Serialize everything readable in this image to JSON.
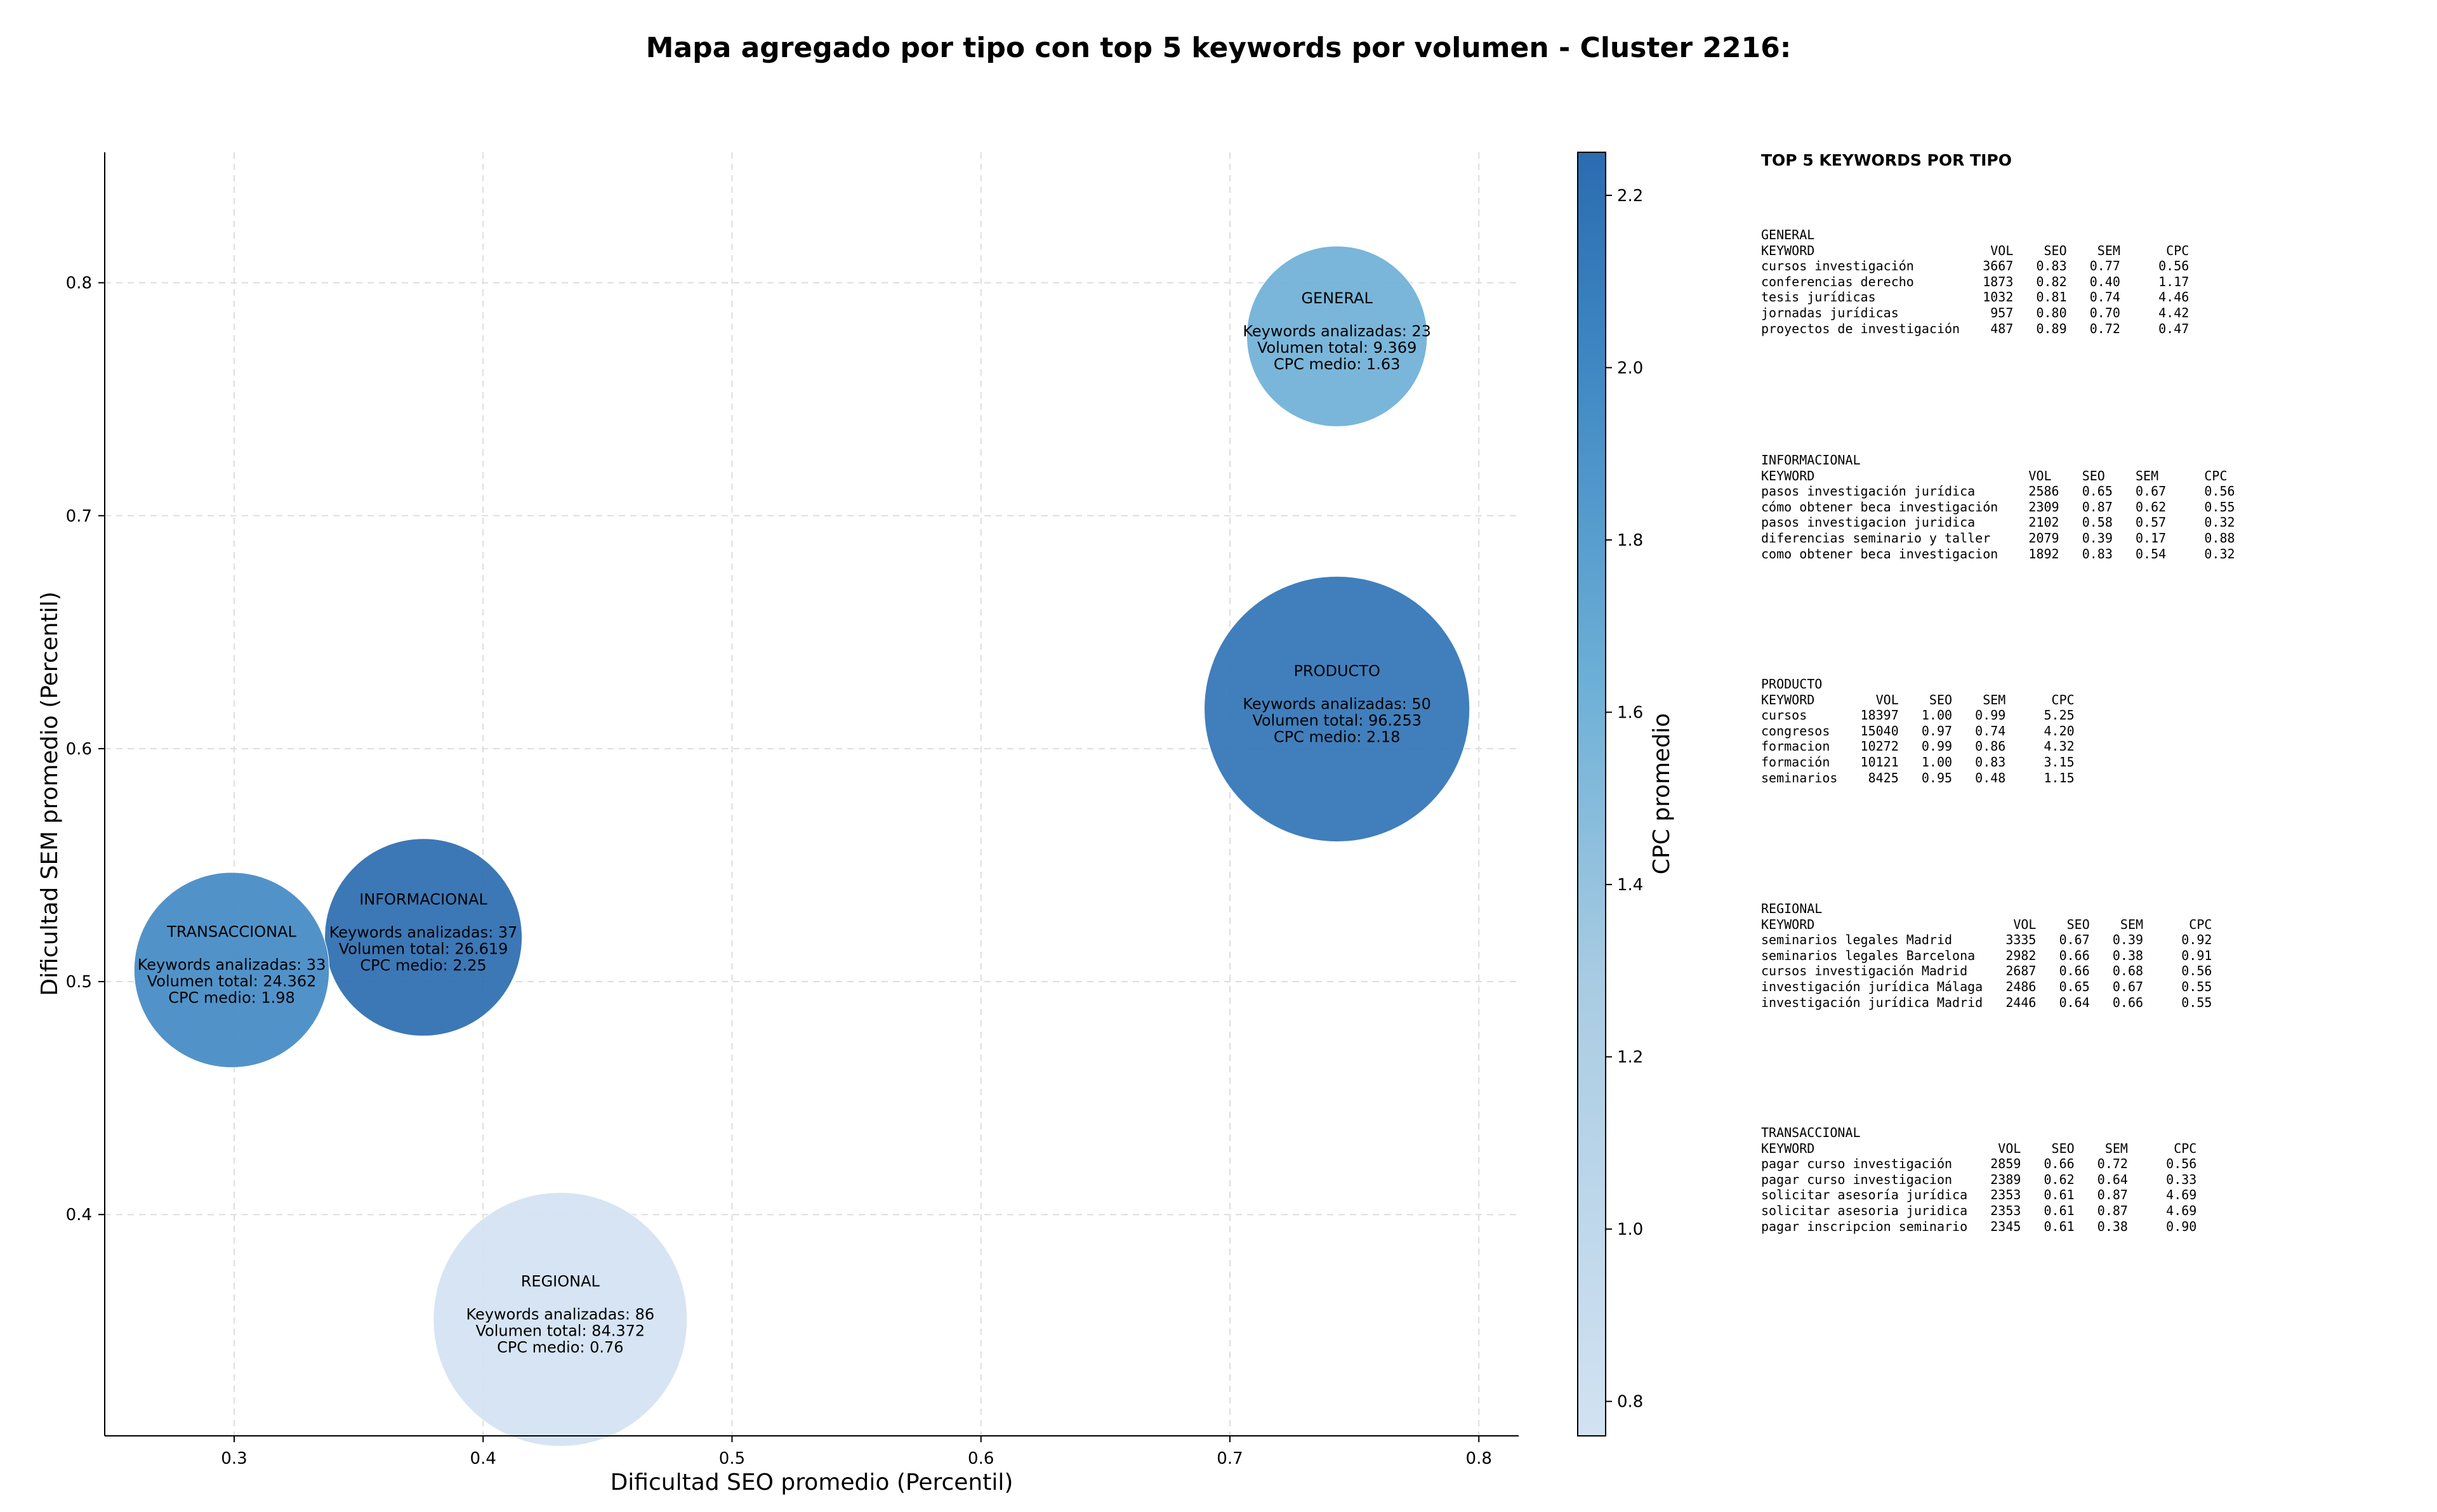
{
  "chart_data": {
    "type": "scatter",
    "title": "Mapa agregado por tipo con top 5 keywords por volumen - Cluster 2216:",
    "xlabel": "Dificultad SEO promedio (Percentil)",
    "ylabel": "Dificultad SEM promedio (Percentil)",
    "colorbar_label": "CPC promedio",
    "xlim": [
      0.248,
      0.816
    ],
    "ylim": [
      0.305,
      0.856
    ],
    "x_ticks": [
      "0.3",
      "0.4",
      "0.5",
      "0.6",
      "0.7",
      "0.8"
    ],
    "y_ticks": [
      "0.4",
      "0.5",
      "0.6",
      "0.7",
      "0.8"
    ],
    "colorbar_ticks": [
      "0.8",
      "1.0",
      "1.2",
      "1.4",
      "1.6",
      "1.8",
      "2.0",
      "2.2"
    ],
    "colorbar_range": [
      0.76,
      2.25
    ],
    "grid": true,
    "points": [
      {
        "name": "GENERAL",
        "x": 0.743,
        "y": 0.777,
        "cpc": 1.63,
        "volume": 9369,
        "lines": [
          "Keywords analizadas: 23",
          "Volumen total: 9.369",
          "CPC medio: 1.63"
        ]
      },
      {
        "name": "PRODUCTO",
        "x": 0.743,
        "y": 0.617,
        "cpc": 2.18,
        "volume": 96253,
        "lines": [
          "Keywords analizadas: 50",
          "Volumen total: 96.253",
          "CPC medio: 2.18"
        ]
      },
      {
        "name": "INFORMACIONAL",
        "x": 0.376,
        "y": 0.519,
        "cpc": 2.25,
        "volume": 26619,
        "lines": [
          "Keywords analizadas: 37",
          "Volumen total: 26.619",
          "CPC medio: 2.25"
        ]
      },
      {
        "name": "TRANSACCIONAL",
        "x": 0.299,
        "y": 0.505,
        "cpc": 1.98,
        "volume": 24362,
        "lines": [
          "Keywords analizadas: 33",
          "Volumen total: 24.362",
          "CPC medio: 1.98"
        ]
      },
      {
        "name": "REGIONAL",
        "x": 0.431,
        "y": 0.355,
        "cpc": 0.76,
        "volume": 84372,
        "lines": [
          "Keywords analizadas: 86",
          "Volumen total: 84.372",
          "CPC medio: 0.76"
        ]
      }
    ]
  },
  "side_panel": {
    "title": "TOP 5 KEYWORDS POR TIPO",
    "tables": [
      {
        "type": "GENERAL",
        "text": "GENERAL\nKEYWORD                       VOL    SEO    SEM      CPC\ncursos investigación         3667   0.83   0.77     0.56\nconferencias derecho         1873   0.82   0.40     1.17\ntesis jurídicas              1032   0.81   0.74     4.46\njornadas jurídicas            957   0.80   0.70     4.42\nproyectos de investigación    487   0.89   0.72     0.47"
      },
      {
        "type": "INFORMACIONAL",
        "text": "INFORMACIONAL\nKEYWORD                            VOL    SEO    SEM      CPC\npasos investigación jurídica       2586   0.65   0.67     0.56\ncómo obtener beca investigación    2309   0.87   0.62     0.55\npasos investigacion juridica       2102   0.58   0.57     0.32\ndiferencias seminario y taller     2079   0.39   0.17     0.88\ncomo obtener beca investigacion    1892   0.83   0.54     0.32"
      },
      {
        "type": "PRODUCTO",
        "text": "PRODUCTO\nKEYWORD        VOL    SEO    SEM      CPC\ncursos       18397   1.00   0.99     5.25\ncongresos    15040   0.97   0.74     4.20\nformacion    10272   0.99   0.86     4.32\nformación    10121   1.00   0.83     3.15\nseminarios    8425   0.95   0.48     1.15"
      },
      {
        "type": "REGIONAL",
        "text": "REGIONAL\nKEYWORD                          VOL    SEO    SEM      CPC\nseminarios legales Madrid       3335   0.67   0.39     0.92\nseminarios legales Barcelona    2982   0.66   0.38     0.91\ncursos investigación Madrid     2687   0.66   0.68     0.56\ninvestigación jurídica Málaga   2486   0.65   0.67     0.55\ninvestigación jurídica Madrid   2446   0.64   0.66     0.55"
      },
      {
        "type": "TRANSACCIONAL",
        "text": "TRANSACCIONAL\nKEYWORD                        VOL    SEO    SEM      CPC\npagar curso investigación     2859   0.66   0.72     0.56\npagar curso investigacion     2389   0.62   0.64     0.33\nsolicitar asesoría jurídica   2353   0.61   0.87     4.69\nsolicitar asesoria juridica   2353   0.61   0.87     4.69\npagar inscripcion seminario   2345   0.61   0.38     0.90"
      }
    ]
  }
}
